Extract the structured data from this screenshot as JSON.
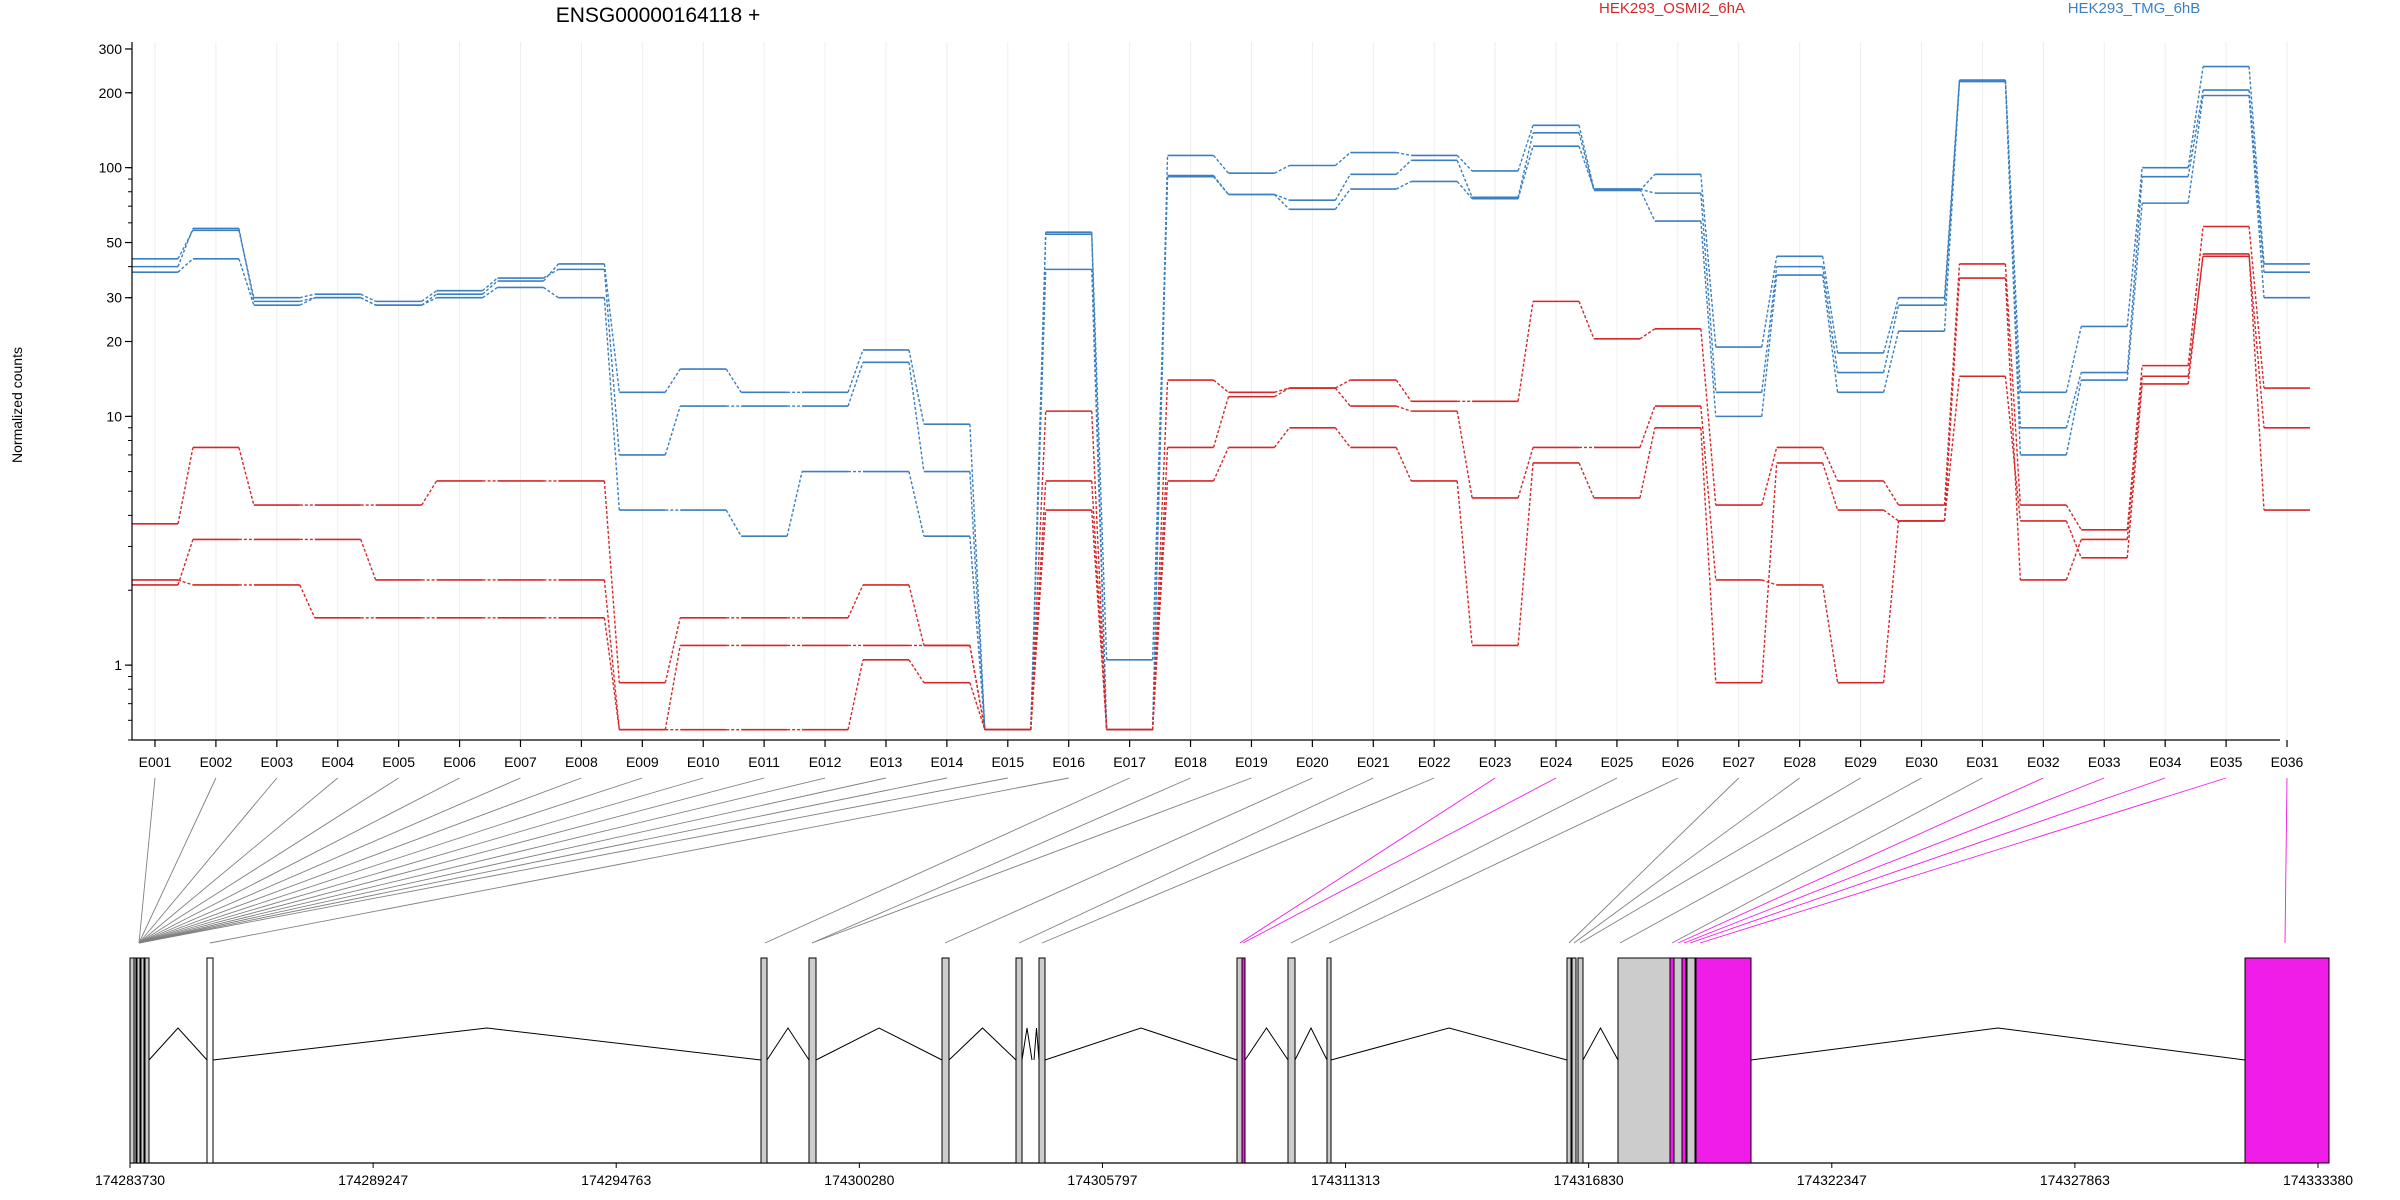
{
  "chart_data": {
    "type": "line",
    "title": "ENSG00000164118 +",
    "ylabel": "Normalized counts",
    "xlabel": "",
    "y_scale": "log",
    "ylim": [
      0.5,
      320
    ],
    "y_ticks": [
      1,
      10,
      20,
      30,
      50,
      100,
      200,
      300
    ],
    "categories": [
      "E001",
      "E002",
      "E003",
      "E004",
      "E005",
      "E006",
      "E007",
      "E008",
      "E009",
      "E010",
      "E011",
      "E012",
      "E013",
      "E014",
      "E015",
      "E016",
      "E017",
      "E018",
      "E019",
      "E020",
      "E021",
      "E022",
      "E023",
      "E024",
      "E025",
      "E026",
      "E027",
      "E028",
      "E029",
      "E030",
      "E031",
      "E032",
      "E033",
      "E034",
      "E035",
      "E036"
    ],
    "legend": [
      {
        "name": "HEK293_OSMI2_6hA",
        "color": "#d62728"
      },
      {
        "name": "HEK293_TMG_6hB",
        "color": "#3a7fc1"
      }
    ],
    "series": [
      {
        "group": "HEK293_TMG_6hB",
        "color": "#3a7fc1",
        "values": [
          40,
          57,
          29,
          30,
          28,
          31,
          35,
          41,
          12.5,
          15.5,
          12.5,
          12.5,
          18.5,
          9.3,
          0.55,
          55,
          1.05,
          93,
          78,
          74,
          94,
          107,
          76,
          138,
          81,
          94,
          19,
          44,
          18,
          30,
          225,
          12.5,
          23,
          100,
          255,
          41
        ]
      },
      {
        "group": "HEK293_TMG_6hB",
        "color": "#3a7fc1",
        "values": [
          43,
          56,
          30,
          31,
          29,
          32,
          36,
          39,
          7,
          11,
          11,
          11,
          16.5,
          6,
          0.55,
          54,
          0.55,
          92,
          78,
          68,
          82,
          88,
          75,
          122,
          82,
          79,
          12.5,
          40,
          15,
          28,
          222,
          9,
          15,
          92,
          205,
          38
        ]
      },
      {
        "group": "HEK293_TMG_6hB",
        "color": "#3a7fc1",
        "values": [
          38,
          43,
          28,
          30,
          28,
          30,
          33,
          30,
          4.2,
          4.2,
          3.3,
          6,
          6,
          3.3,
          0.55,
          39,
          0.55,
          112,
          95,
          102,
          115,
          112,
          97,
          148,
          82,
          61,
          10,
          37,
          12.5,
          22,
          222,
          7,
          14,
          72,
          195,
          30
        ]
      },
      {
        "group": "HEK293_OSMI2_6hA",
        "color": "#d62728",
        "values": [
          3.7,
          7.5,
          4.4,
          4.4,
          4.4,
          5.5,
          5.5,
          5.5,
          0.85,
          1.55,
          1.55,
          1.55,
          2.1,
          1.2,
          0.55,
          10.5,
          0.55,
          14,
          12.5,
          13,
          14,
          11.5,
          11.5,
          29,
          20.5,
          22.5,
          4.4,
          7.5,
          5.5,
          4.4,
          41,
          4.4,
          3.5,
          16,
          58,
          13
        ]
      },
      {
        "group": "HEK293_OSMI2_6hA",
        "color": "#d62728",
        "values": [
          2.1,
          3.2,
          3.2,
          3.2,
          2.2,
          2.2,
          2.2,
          2.2,
          0.55,
          1.2,
          1.2,
          1.2,
          1.2,
          1.2,
          0.55,
          5.5,
          0.55,
          7.5,
          12,
          13,
          11,
          10.5,
          4.7,
          7.5,
          7.5,
          11,
          2.2,
          2.1,
          0.85,
          3.8,
          36,
          2.2,
          3.2,
          14.5,
          44,
          9
        ]
      },
      {
        "group": "HEK293_OSMI2_6hA",
        "color": "#d62728",
        "values": [
          2.2,
          2.1,
          2.1,
          1.55,
          1.55,
          1.55,
          1.55,
          1.55,
          0.55,
          0.55,
          0.55,
          0.55,
          1.05,
          0.85,
          0.55,
          4.2,
          0.55,
          5.5,
          7.5,
          9,
          7.5,
          5.5,
          1.2,
          6.5,
          4.7,
          9,
          0.85,
          6.5,
          4.2,
          3.8,
          14.5,
          3.8,
          2.7,
          13.5,
          45,
          4.2
        ]
      }
    ],
    "gene_model": {
      "axis_ticks": [
        "174283730",
        "174289247",
        "174294763",
        "174300280",
        "174305797",
        "174311313",
        "174316830",
        "174322347",
        "174327863",
        "174333380"
      ],
      "genome_start": 174283730,
      "genome_end": 174333380,
      "exon_color": "#cccccc",
      "highlight_color": "#f01ce8",
      "intron_color": "#000000"
    },
    "grid": true,
    "legend_position": "top"
  }
}
